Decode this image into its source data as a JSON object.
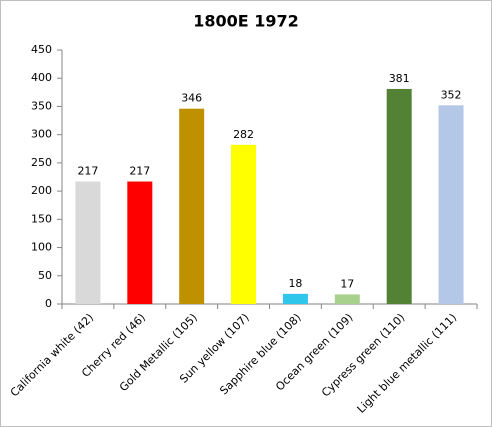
{
  "chart_data": {
    "type": "bar",
    "title": "1800E 1972",
    "categories": [
      "California white (42)",
      "Cherry red (46)",
      "Gold Metallic (105)",
      "Sun yellow (107)",
      "Sapphire blue (108)",
      "Ocean green (109)",
      "Cypress green (110)",
      "Light blue metallic (111)"
    ],
    "values": [
      217,
      217,
      346,
      282,
      18,
      17,
      381,
      352
    ],
    "colors": [
      "#d9d9d9",
      "#ff0000",
      "#bf9000",
      "#ffff00",
      "#2fc6ec",
      "#a9d18e",
      "#548235",
      "#b4c7e7"
    ],
    "ylim": [
      0,
      450
    ],
    "yticks": [
      0,
      50,
      100,
      150,
      200,
      250,
      300,
      350,
      400,
      450
    ],
    "grid": false
  }
}
